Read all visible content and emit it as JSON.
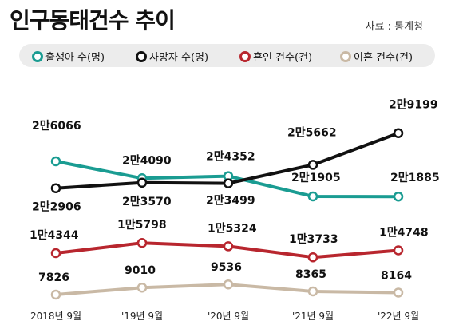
{
  "header": {
    "title": "인구동태건수 추이",
    "source": "자료 : 통계청"
  },
  "chart_data": {
    "type": "line",
    "title": "인구동태건수 추이",
    "categories": [
      "2018년 9월",
      "'19년 9월",
      "'20년 9월",
      "'21년 9월",
      "'22년 9월"
    ],
    "series": [
      {
        "name": "출생아 수(명)",
        "color": "#1a9c92",
        "values": [
          26066,
          24090,
          24352,
          21905,
          21885
        ],
        "labels": [
          "2만6066",
          "2만4090",
          "2만4352",
          "2만1905",
          "2만1885"
        ]
      },
      {
        "name": "사망자 수(명)",
        "color": "#111111",
        "values": [
          22906,
          23570,
          23499,
          25662,
          29199
        ],
        "labels": [
          "2만2906",
          "2만3570",
          "2만3499",
          "2만5662",
          "2만9199"
        ]
      },
      {
        "name": "혼인 건수(건)",
        "color": "#b8262e",
        "values": [
          14344,
          15798,
          15324,
          13733,
          14748
        ],
        "labels": [
          "1만4344",
          "1만5798",
          "1만5324",
          "1만3733",
          "1만4748"
        ]
      },
      {
        "name": "이혼 건수(건)",
        "color": "#c9b9a5",
        "values": [
          7826,
          9010,
          9536,
          8365,
          8164
        ],
        "labels": [
          "7826",
          "9010",
          "9536",
          "8365",
          "8164"
        ]
      }
    ],
    "grid": false,
    "legend": "top"
  }
}
